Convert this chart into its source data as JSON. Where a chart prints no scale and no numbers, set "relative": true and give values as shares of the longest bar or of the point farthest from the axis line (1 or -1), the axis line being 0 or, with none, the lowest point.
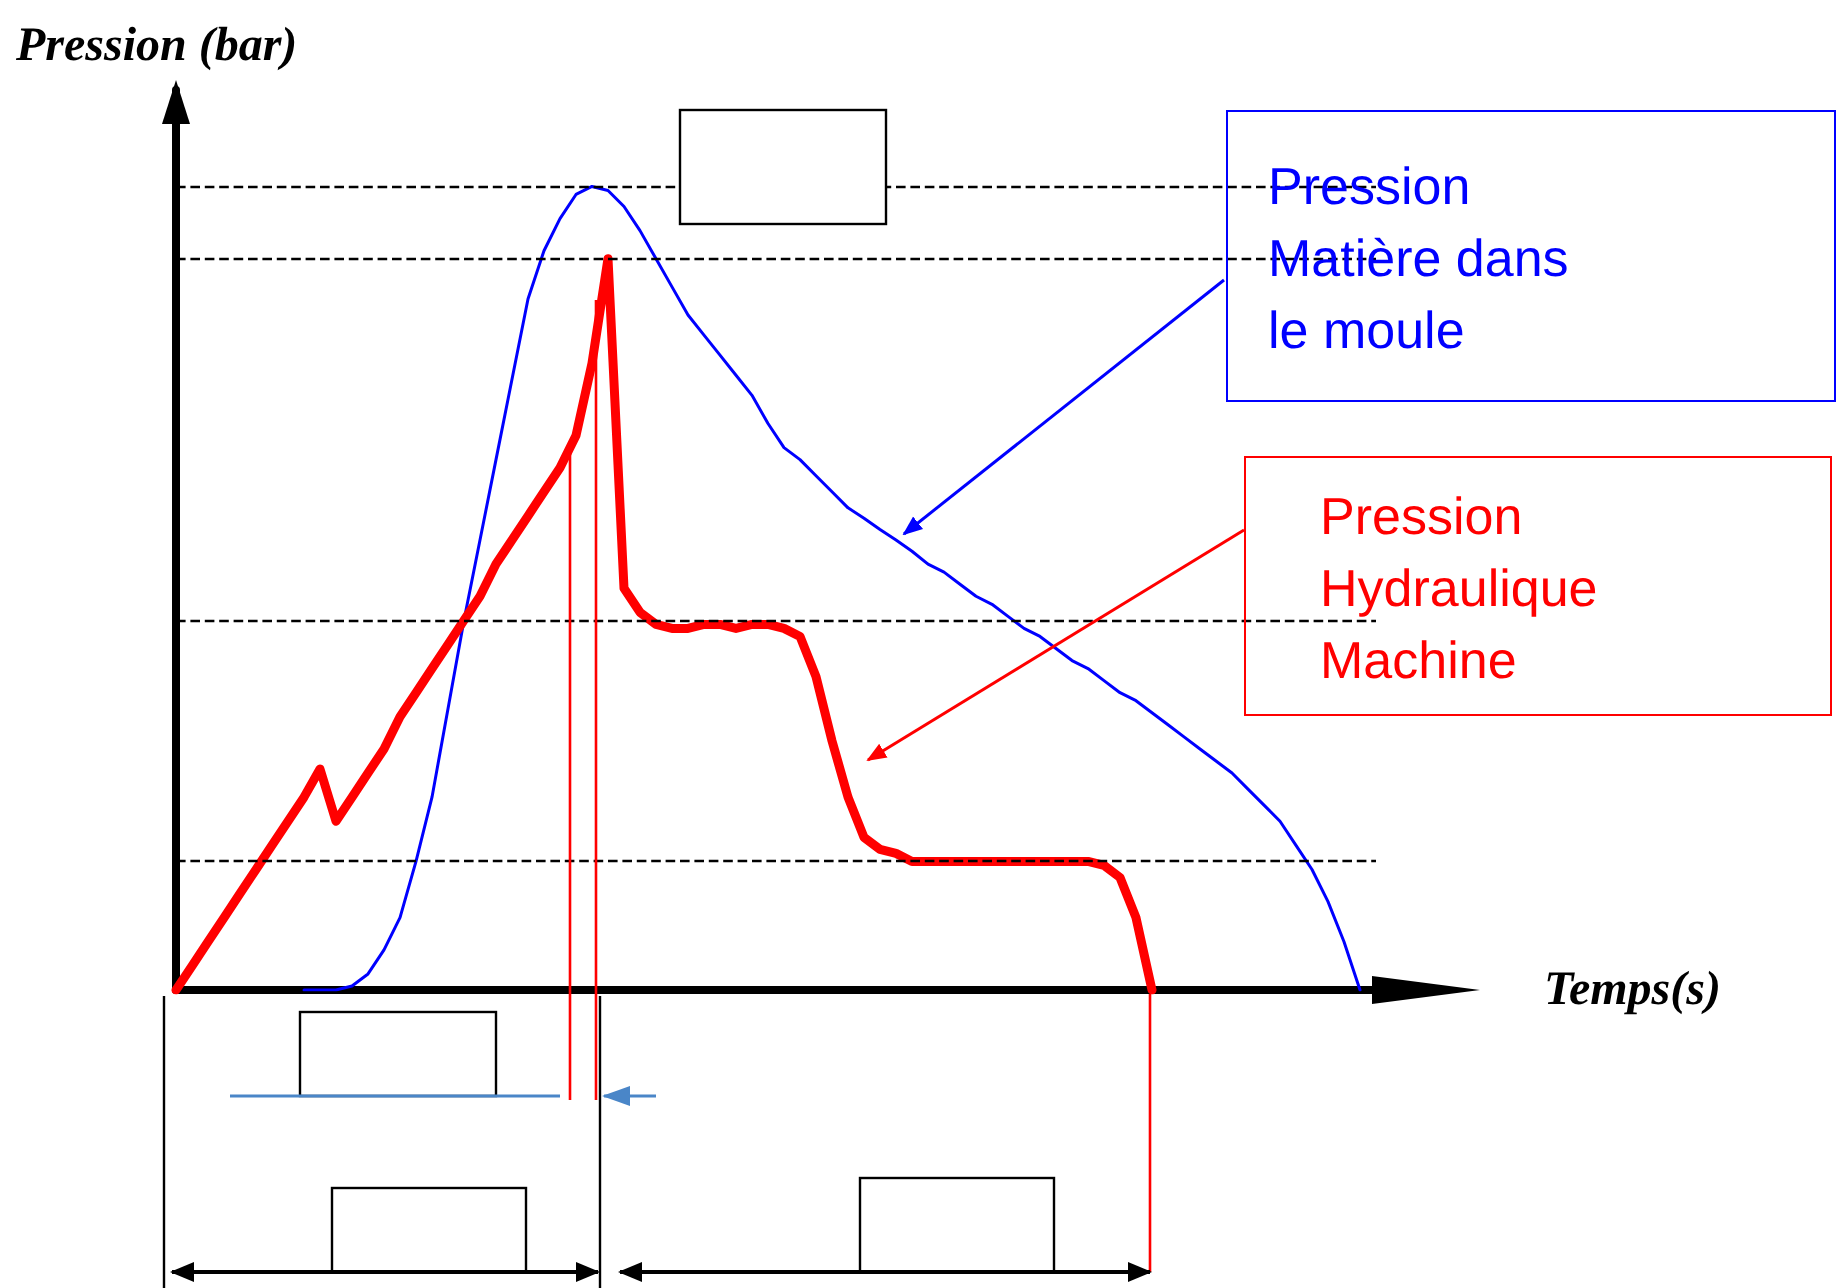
{
  "chart_data": {
    "type": "line",
    "relative": true,
    "xlabel": "Temps(s)",
    "ylabel": "Pression (bar)",
    "categories": [
      null,
      null,
      null,
      null,
      null,
      null,
      null,
      null,
      null,
      null,
      null,
      null,
      null,
      null,
      null,
      null,
      null,
      null,
      null,
      null,
      null,
      null,
      null,
      null,
      null,
      null,
      null,
      null,
      null,
      null,
      null,
      null,
      null,
      null,
      null,
      null,
      null,
      null,
      null,
      null,
      null,
      null,
      null,
      null,
      null,
      null,
      null,
      null,
      null,
      null,
      null,
      null,
      null,
      null,
      null,
      null,
      null,
      null,
      null,
      null,
      null,
      null,
      null,
      null,
      null,
      null,
      null,
      null,
      null,
      null,
      null,
      null,
      null,
      null,
      null,
      null
    ],
    "series": [
      {
        "name": "Pression Matière dans le moule",
        "color": "#0000ff",
        "values": [
          null,
          null,
          null,
          null,
          null,
          null,
          null,
          null,
          0,
          0,
          0,
          0.005,
          0.02,
          0.05,
          0.09,
          0.16,
          0.24,
          0.35,
          0.46,
          0.56,
          0.66,
          0.76,
          0.86,
          0.92,
          0.96,
          0.99,
          1.0,
          0.995,
          0.975,
          0.945,
          0.91,
          0.875,
          0.84,
          0.815,
          0.79,
          0.765,
          0.74,
          0.705,
          0.675,
          0.66,
          0.64,
          0.62,
          0.6,
          0.587,
          0.573,
          0.56,
          0.546,
          0.53,
          0.52,
          0.505,
          0.49,
          0.48,
          0.465,
          0.45,
          0.44,
          0.425,
          0.41,
          0.4,
          0.385,
          0.37,
          0.36,
          0.345,
          0.33,
          0.315,
          0.3,
          0.285,
          0.27,
          0.25,
          0.23,
          0.21,
          0.18,
          0.15,
          0.11,
          0.06,
          0,
          null
        ]
      },
      {
        "name": "Pression Hydraulique Machine",
        "color": "#ff0000",
        "values": [
          0,
          0.03,
          0.06,
          0.09,
          0.12,
          0.15,
          0.18,
          0.21,
          0.24,
          0.275,
          0.21,
          0.24,
          0.27,
          0.3,
          0.34,
          0.37,
          0.4,
          0.43,
          0.46,
          0.49,
          0.53,
          0.56,
          0.59,
          0.62,
          0.65,
          0.69,
          0.78,
          0.91,
          0.5,
          0.47,
          0.455,
          0.45,
          0.45,
          0.455,
          0.455,
          0.45,
          0.455,
          0.455,
          0.45,
          0.44,
          0.39,
          0.31,
          0.24,
          0.19,
          0.175,
          0.17,
          0.16,
          0.16,
          0.16,
          0.16,
          0.16,
          0.16,
          0.16,
          0.16,
          0.16,
          0.16,
          0.16,
          0.16,
          0.155,
          0.14,
          0.09,
          0,
          null,
          null,
          null,
          null,
          null,
          null,
          null,
          null,
          null,
          null,
          null,
          null,
          null,
          null
        ]
      }
    ],
    "ref_lines": [
      {
        "axis": "y",
        "value": 1.0,
        "color": "#000000",
        "line_style": "dashed"
      },
      {
        "axis": "y",
        "value": 0.91,
        "color": "#000000",
        "line_style": "dashed"
      },
      {
        "axis": "y",
        "value": 0.4575,
        "color": "#000000",
        "line_style": "dashed"
      },
      {
        "axis": "y",
        "value": 0.1575,
        "color": "#000000",
        "line_style": "dashed"
      }
    ],
    "legend": false,
    "grid": false,
    "marker": "none",
    "line_style": "solid"
  }
}
